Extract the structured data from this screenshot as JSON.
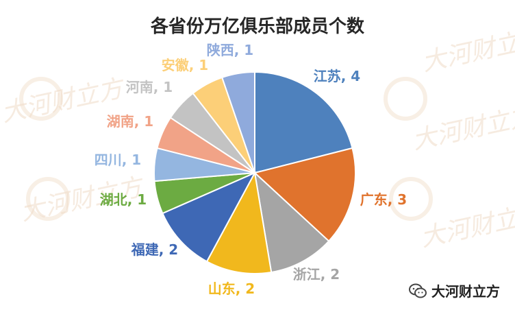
{
  "chart_data": {
    "type": "pie",
    "title": "各省份万亿俱乐部成员个数",
    "categories": [
      "江苏",
      "广东",
      "浙江",
      "山东",
      "福建",
      "湖北",
      "四川",
      "湖南",
      "河南",
      "安徽",
      "陕西"
    ],
    "values": [
      4,
      3,
      2,
      2,
      2,
      1,
      1,
      1,
      1,
      1,
      1
    ],
    "labels": [
      "江苏, 4",
      "广东, 3",
      "浙江, 2",
      "山东, 2",
      "福建, 2",
      "湖北, 1",
      "四川, 1",
      "湖南, 1",
      "河南, 1",
      "安徽, 1",
      "陕西, 1"
    ],
    "colors": [
      "#4e81bd",
      "#e0732d",
      "#a5a5a5",
      "#f1b81d",
      "#3e68b5",
      "#6cab42",
      "#94b6e0",
      "#f1a387",
      "#c3c3c3",
      "#fccf78",
      "#8faadc"
    ]
  },
  "watermark": {
    "text": "大河财立方",
    "icon": "wechat-icon",
    "ghost_text": "大河财立方"
  }
}
